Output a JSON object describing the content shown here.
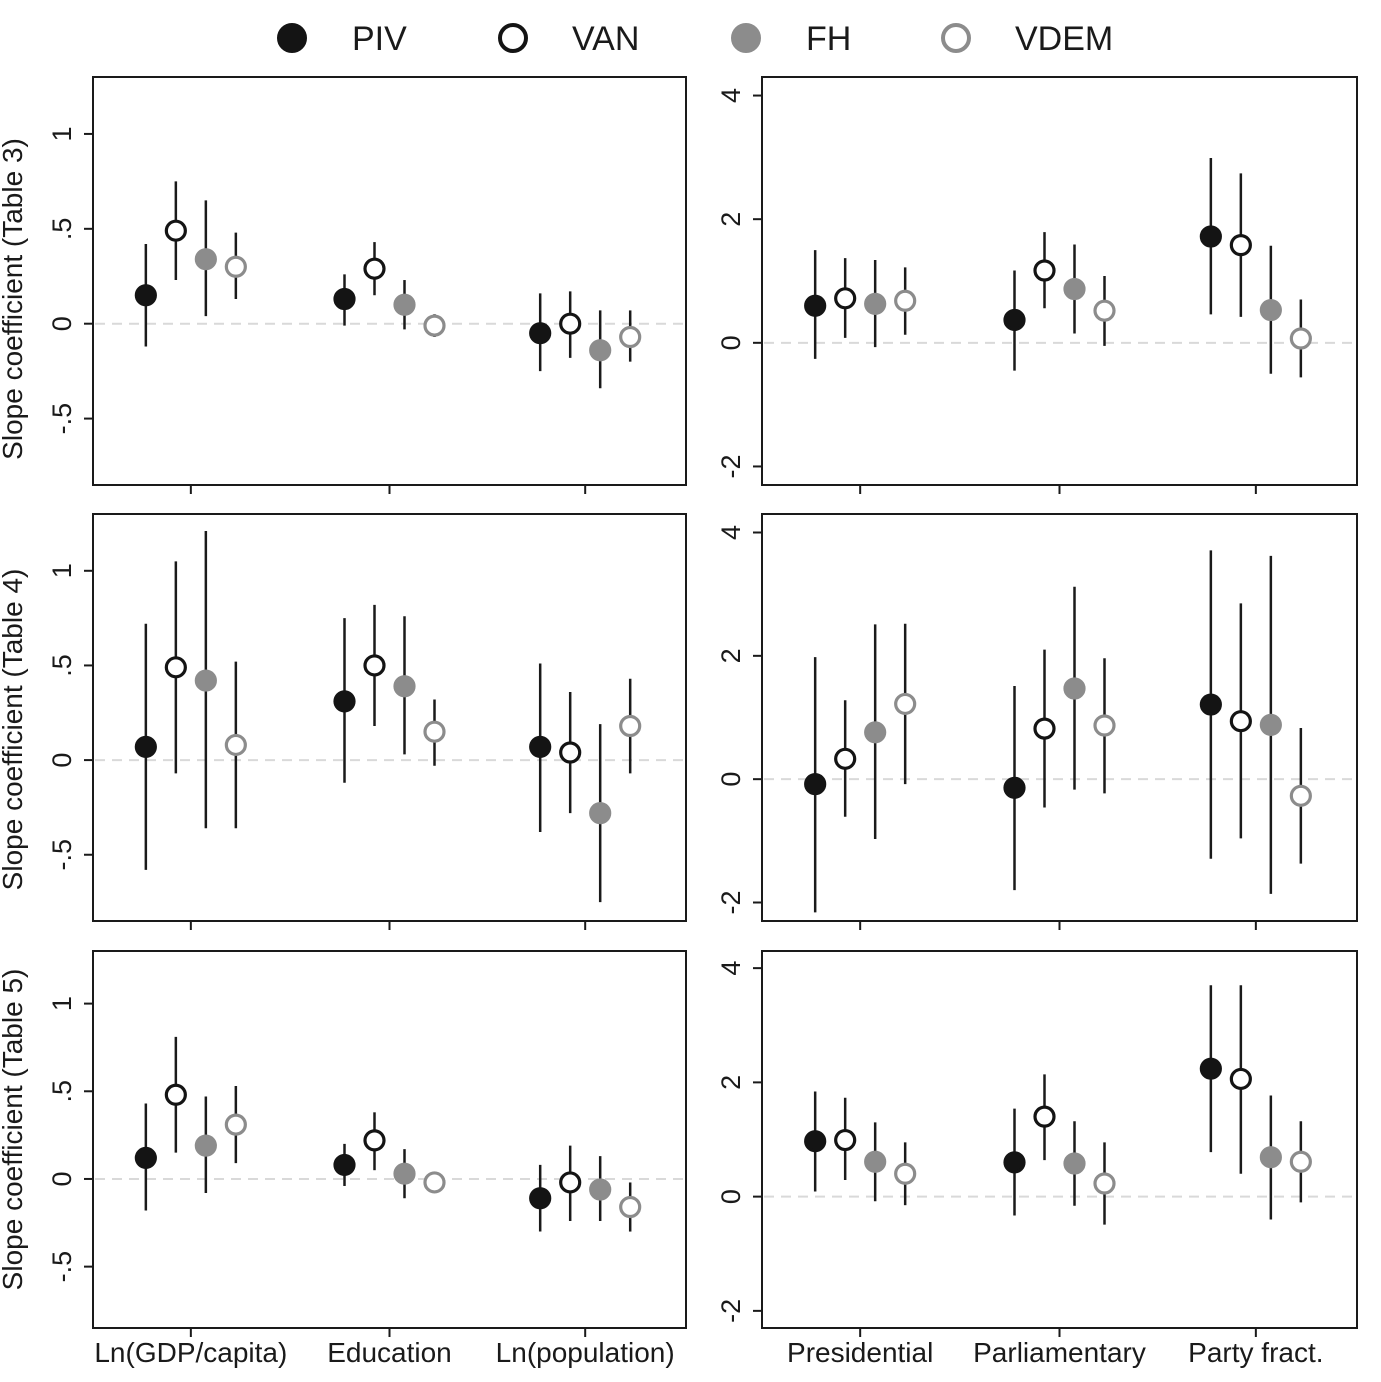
{
  "legend": [
    {
      "name": "PIV",
      "fill": "#141414",
      "stroke": "#141414"
    },
    {
      "name": "VAN",
      "fill": "#ffffff",
      "stroke": "#141414"
    },
    {
      "name": "FH",
      "fill": "#8c8c8c",
      "stroke": "#8c8c8c"
    },
    {
      "name": "VDEM",
      "fill": "#ffffff",
      "stroke": "#8c8c8c"
    }
  ],
  "chart_data": [
    {
      "type": "scatter",
      "title": "",
      "ylabel": "Slope coefficient (Table 3)",
      "ylim": [
        -0.85,
        1.3
      ],
      "yticks": [
        -0.5,
        0,
        0.5,
        1
      ],
      "ytick_labels": [
        "-.5",
        "0",
        ".5",
        "1"
      ],
      "categories": [
        "Ln(GDP/capita)",
        "Education",
        "Ln(population)"
      ],
      "series": [
        {
          "name": "PIV",
          "values": [
            0.15,
            0.13,
            -0.05
          ],
          "ci_low": [
            -0.12,
            -0.01,
            -0.25
          ],
          "ci_high": [
            0.42,
            0.26,
            0.16
          ]
        },
        {
          "name": "VAN",
          "values": [
            0.49,
            0.29,
            0.0
          ],
          "ci_low": [
            0.23,
            0.15,
            -0.18
          ],
          "ci_high": [
            0.75,
            0.43,
            0.17
          ]
        },
        {
          "name": "FH",
          "values": [
            0.34,
            0.1,
            -0.14
          ],
          "ci_low": [
            0.04,
            -0.03,
            -0.34
          ],
          "ci_high": [
            0.65,
            0.23,
            0.07
          ]
        },
        {
          "name": "VDEM",
          "values": [
            0.3,
            -0.01,
            -0.07
          ],
          "ci_low": [
            0.13,
            -0.07,
            -0.2
          ],
          "ci_high": [
            0.48,
            0.05,
            0.07
          ]
        }
      ]
    },
    {
      "type": "scatter",
      "title": "",
      "ylabel": "",
      "ylim": [
        -2.3,
        4.3
      ],
      "yticks": [
        -2,
        0,
        2,
        4
      ],
      "ytick_labels": [
        "-2",
        "0",
        "2",
        "4"
      ],
      "categories": [
        "Presidential",
        "Parliamentary",
        "Party fract."
      ],
      "series": [
        {
          "name": "PIV",
          "values": [
            0.6,
            0.37,
            1.72
          ],
          "ci_low": [
            -0.26,
            -0.45,
            0.46
          ],
          "ci_high": [
            1.5,
            1.17,
            2.99
          ]
        },
        {
          "name": "VAN",
          "values": [
            0.72,
            1.17,
            1.58
          ],
          "ci_low": [
            0.08,
            0.56,
            0.42
          ],
          "ci_high": [
            1.37,
            1.79,
            2.74
          ]
        },
        {
          "name": "FH",
          "values": [
            0.63,
            0.87,
            0.53
          ],
          "ci_low": [
            -0.07,
            0.15,
            -0.5
          ],
          "ci_high": [
            1.34,
            1.59,
            1.57
          ]
        },
        {
          "name": "VDEM",
          "values": [
            0.68,
            0.52,
            0.07
          ],
          "ci_low": [
            0.13,
            -0.05,
            -0.56
          ],
          "ci_high": [
            1.22,
            1.08,
            0.7
          ]
        }
      ]
    },
    {
      "type": "scatter",
      "title": "",
      "ylabel": "Slope coefficient (Table 4)",
      "ylim": [
        -0.85,
        1.3
      ],
      "yticks": [
        -0.5,
        0,
        0.5,
        1
      ],
      "ytick_labels": [
        "-.5",
        "0",
        ".5",
        "1"
      ],
      "categories": [
        "Ln(GDP/capita)",
        "Education",
        "Ln(population)"
      ],
      "series": [
        {
          "name": "PIV",
          "values": [
            0.07,
            0.31,
            0.07
          ],
          "ci_low": [
            -0.58,
            -0.12,
            -0.38
          ],
          "ci_high": [
            0.72,
            0.75,
            0.51
          ]
        },
        {
          "name": "VAN",
          "values": [
            0.49,
            0.5,
            0.04
          ],
          "ci_low": [
            -0.07,
            0.18,
            -0.28
          ],
          "ci_high": [
            1.05,
            0.82,
            0.36
          ]
        },
        {
          "name": "FH",
          "values": [
            0.42,
            0.39,
            -0.28
          ],
          "ci_low": [
            -0.36,
            0.03,
            -0.75
          ],
          "ci_high": [
            1.21,
            0.76,
            0.19
          ]
        },
        {
          "name": "VDEM",
          "values": [
            0.08,
            0.15,
            0.18
          ],
          "ci_low": [
            -0.36,
            -0.03,
            -0.07
          ],
          "ci_high": [
            0.52,
            0.32,
            0.43
          ]
        }
      ]
    },
    {
      "type": "scatter",
      "title": "",
      "ylabel": "",
      "ylim": [
        -2.3,
        4.3
      ],
      "yticks": [
        -2,
        0,
        2,
        4
      ],
      "ytick_labels": [
        "-2",
        "0",
        "2",
        "4"
      ],
      "categories": [
        "Presidential",
        "Parliamentary",
        "Party fract."
      ],
      "series": [
        {
          "name": "PIV",
          "values": [
            -0.08,
            -0.14,
            1.21
          ],
          "ci_low": [
            -2.16,
            -1.8,
            -1.29
          ],
          "ci_high": [
            1.98,
            1.51,
            3.71
          ]
        },
        {
          "name": "VAN",
          "values": [
            0.33,
            0.82,
            0.94
          ],
          "ci_low": [
            -0.61,
            -0.46,
            -0.96
          ],
          "ci_high": [
            1.28,
            2.1,
            2.85
          ]
        },
        {
          "name": "FH",
          "values": [
            0.76,
            1.47,
            0.88
          ],
          "ci_low": [
            -0.97,
            -0.17,
            -1.86
          ],
          "ci_high": [
            2.51,
            3.12,
            3.62
          ]
        },
        {
          "name": "VDEM",
          "values": [
            1.22,
            0.87,
            -0.27
          ],
          "ci_low": [
            -0.08,
            -0.23,
            -1.37
          ],
          "ci_high": [
            2.52,
            1.96,
            0.83
          ]
        }
      ]
    },
    {
      "type": "scatter",
      "title": "",
      "ylabel": "Slope coefficient (Table 5)",
      "ylim": [
        -0.85,
        1.3
      ],
      "yticks": [
        -0.5,
        0,
        0.5,
        1
      ],
      "ytick_labels": [
        "-.5",
        "0",
        ".5",
        "1"
      ],
      "categories": [
        "Ln(GDP/capita)",
        "Education",
        "Ln(population)"
      ],
      "series": [
        {
          "name": "PIV",
          "values": [
            0.12,
            0.08,
            -0.11
          ],
          "ci_low": [
            -0.18,
            -0.04,
            -0.3
          ],
          "ci_high": [
            0.43,
            0.2,
            0.08
          ]
        },
        {
          "name": "VAN",
          "values": [
            0.48,
            0.22,
            -0.02
          ],
          "ci_low": [
            0.15,
            0.05,
            -0.24
          ],
          "ci_high": [
            0.81,
            0.38,
            0.19
          ]
        },
        {
          "name": "FH",
          "values": [
            0.19,
            0.03,
            -0.06
          ],
          "ci_low": [
            -0.08,
            -0.11,
            -0.24
          ],
          "ci_high": [
            0.47,
            0.17,
            0.13
          ]
        },
        {
          "name": "VDEM",
          "values": [
            0.31,
            -0.02,
            -0.16
          ],
          "ci_low": [
            0.09,
            -0.07,
            -0.3
          ],
          "ci_high": [
            0.53,
            0.03,
            -0.02
          ]
        }
      ]
    },
    {
      "type": "scatter",
      "title": "",
      "ylabel": "",
      "ylim": [
        -2.3,
        4.3
      ],
      "yticks": [
        -2,
        0,
        2,
        4
      ],
      "ytick_labels": [
        "-2",
        "0",
        "2",
        "4"
      ],
      "categories": [
        "Presidential",
        "Parliamentary",
        "Party fract."
      ],
      "series": [
        {
          "name": "PIV",
          "values": [
            0.97,
            0.6,
            2.24
          ],
          "ci_low": [
            0.09,
            -0.33,
            0.78
          ],
          "ci_high": [
            1.84,
            1.54,
            3.7
          ]
        },
        {
          "name": "VAN",
          "values": [
            0.99,
            1.4,
            2.06
          ],
          "ci_low": [
            0.29,
            0.64,
            0.4
          ],
          "ci_high": [
            1.73,
            2.14,
            3.7
          ]
        },
        {
          "name": "FH",
          "values": [
            0.61,
            0.58,
            0.69
          ],
          "ci_low": [
            -0.08,
            -0.16,
            -0.4
          ],
          "ci_high": [
            1.3,
            1.32,
            1.77
          ]
        },
        {
          "name": "VDEM",
          "values": [
            0.4,
            0.23,
            0.61
          ],
          "ci_low": [
            -0.15,
            -0.49,
            -0.1
          ],
          "ci_high": [
            0.95,
            0.95,
            1.32
          ]
        }
      ]
    }
  ]
}
